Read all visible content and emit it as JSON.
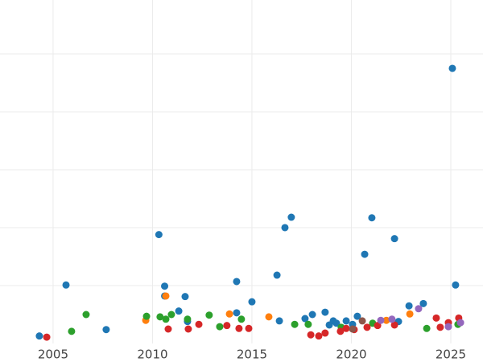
{
  "chart_data": {
    "type": "scatter",
    "xlim": [
      2002.33,
      2026.62
    ],
    "xticks": [
      2005,
      2010,
      2015,
      2020,
      2025
    ],
    "ylim": [
      0,
      5.93
    ],
    "yticks": [
      1,
      2,
      3,
      4,
      5
    ],
    "show_ytick_labels": false,
    "grid": true,
    "series": [
      {
        "color": "#1f77b4",
        "x": [
          2004.31,
          2005.65,
          2007.67,
          2010.32,
          2010.61,
          2010.61,
          2011.32,
          2011.64,
          2011.76,
          2014.23,
          2014.23,
          2015.0,
          2016.26,
          2016.38,
          2016.66,
          2016.98,
          2017.67,
          2018.04,
          2018.68,
          2018.89,
          2019.09,
          2019.25,
          2019.74,
          2020.06,
          2020.3,
          2020.67,
          2021.03,
          2022.17,
          2022.37,
          2022.9,
          2023.62,
          2025.08,
          2025.24
        ],
        "values": [
          0.13,
          1.01,
          0.24,
          1.88,
          0.99,
          0.82,
          0.56,
          0.81,
          0.38,
          1.07,
          0.53,
          0.72,
          1.18,
          0.39,
          2.0,
          2.18,
          0.43,
          0.5,
          0.54,
          0.32,
          0.39,
          0.35,
          0.39,
          0.33,
          0.47,
          1.54,
          2.17,
          1.81,
          0.38,
          0.65,
          0.69,
          4.75,
          1.01
        ]
      },
      {
        "color": "#ff7f0e",
        "x": [
          2009.66,
          2010.67,
          2013.87,
          2015.85,
          2021.76,
          2022.94
        ],
        "values": [
          0.4,
          0.82,
          0.51,
          0.46,
          0.4,
          0.51
        ]
      },
      {
        "color": "#2ca02c",
        "x": [
          2005.93,
          2006.66,
          2009.7,
          2010.38,
          2010.67,
          2010.95,
          2011.76,
          2012.85,
          2013.38,
          2014.47,
          2017.15,
          2017.83,
          2019.49,
          2021.07,
          2023.79,
          2025.36
        ],
        "values": [
          0.21,
          0.5,
          0.47,
          0.46,
          0.42,
          0.5,
          0.42,
          0.49,
          0.29,
          0.42,
          0.33,
          0.33,
          0.28,
          0.35,
          0.26,
          0.33
        ]
      },
      {
        "color": "#d62728",
        "x": [
          2004.68,
          2010.79,
          2011.8,
          2012.33,
          2013.74,
          2014.35,
          2014.84,
          2017.96,
          2018.36,
          2018.68,
          2019.45,
          2019.74,
          2020.14,
          2020.79,
          2021.32,
          2022.17,
          2024.27,
          2024.47,
          2024.88,
          2025.4
        ],
        "values": [
          0.11,
          0.25,
          0.25,
          0.33,
          0.31,
          0.26,
          0.26,
          0.15,
          0.13,
          0.18,
          0.21,
          0.26,
          0.24,
          0.28,
          0.31,
          0.32,
          0.44,
          0.28,
          0.36,
          0.44
        ]
      },
      {
        "color": "#8c564b",
        "x": [
          2020.55,
          2020.06
        ],
        "values": [
          0.39,
          0.25
        ]
      },
      {
        "color": "#9467bd",
        "x": [
          2021.48,
          2022.04,
          2023.38,
          2024.88,
          2025.49
        ],
        "values": [
          0.4,
          0.42,
          0.6,
          0.29,
          0.36
        ]
      }
    ]
  }
}
